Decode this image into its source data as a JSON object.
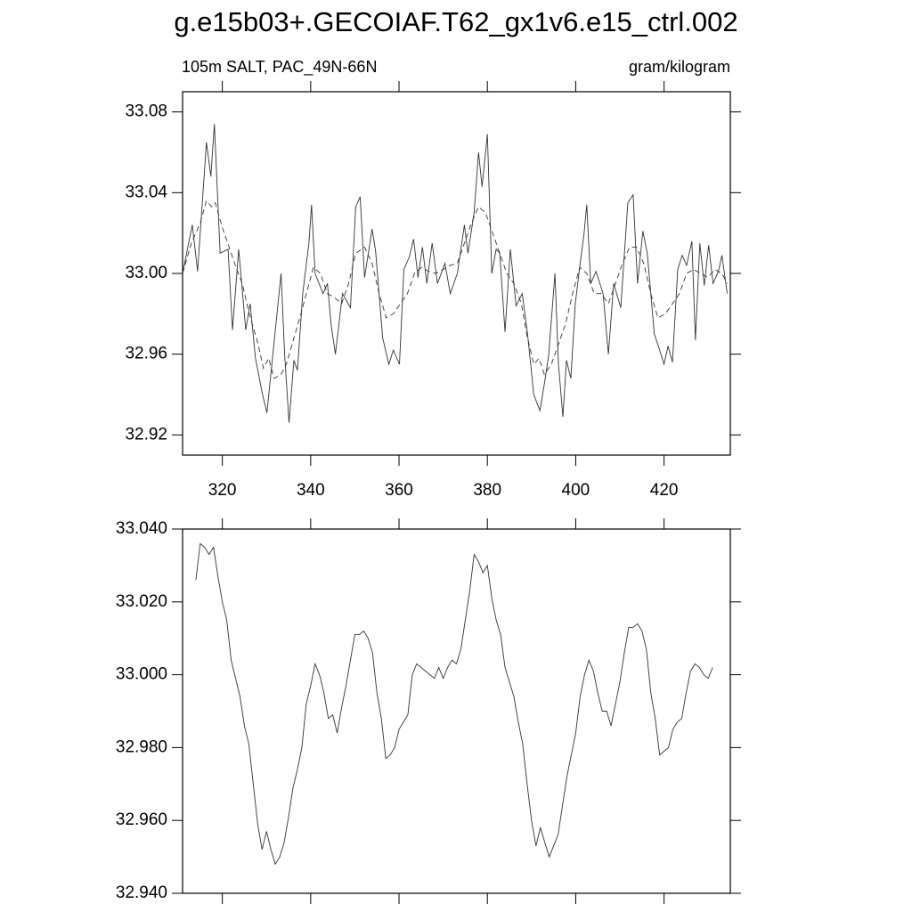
{
  "chart_data": [
    {
      "type": "line",
      "title": "g.e15b03+.GECOIAF.T62_gx1v6.e15_ctrl.002",
      "left_label": "105m SALT, PAC_49N-66N",
      "right_label": "gram/kilogram",
      "xlim": [
        311,
        435
      ],
      "xticks": [
        320,
        340,
        360,
        380,
        400,
        420
      ],
      "ylim": [
        32.91,
        33.09
      ],
      "yticks": [
        32.92,
        32.96,
        {
          "value": 33.0,
          "label": "33.00"
        },
        33.04,
        33.08
      ],
      "series": [
        {
          "color": "#333333",
          "dash": false,
          "x": [
            311,
            313.2,
            314.4,
            316.4,
            317.4,
            318.2,
            319.5,
            321.3,
            322.3,
            323.7,
            325.3,
            326.3,
            327.5,
            329.1,
            330.1,
            333.3,
            334.1,
            335.1,
            336.2,
            337,
            338.2,
            339.6,
            340.2,
            341,
            342.8,
            343.8,
            344.6,
            345.6,
            347.2,
            349,
            350.2,
            351.2,
            352.2,
            353.9,
            354.7,
            356.3,
            357.7,
            358.7,
            360.1,
            361.1,
            362.3,
            363.3,
            364.3,
            365.3,
            366.3,
            367.5,
            368.7,
            370.4,
            371.6,
            373.2,
            374.8,
            375.6,
            377,
            378,
            378.8,
            380,
            381,
            382,
            382.8,
            384,
            385.2,
            386.5,
            387.9,
            389.1,
            390.5,
            391.9,
            393.1,
            393.9,
            395.3,
            396.1,
            397.1,
            397.9,
            398.9,
            399.9,
            400.9,
            401.9,
            402.5,
            403.4,
            404.6,
            406.2,
            407.4,
            408.6,
            410.2,
            411.8,
            413,
            414,
            415.2,
            416.2,
            417.8,
            419,
            420,
            420.9,
            421.9,
            423.1,
            424.1,
            425.1,
            426.3,
            427.1,
            428.1,
            429.1,
            430.1,
            431.1,
            432.3,
            433.1,
            434.3
          ],
          "values": [
            33.0,
            33.024,
            33.001,
            33.065,
            33.048,
            33.074,
            33.01,
            33.012,
            32.972,
            33.012,
            32.972,
            32.985,
            32.958,
            32.94,
            32.931,
            33.0,
            32.96,
            32.926,
            32.957,
            32.952,
            32.99,
            33.015,
            33.034,
            33.0,
            32.99,
            32.995,
            32.975,
            32.96,
            32.99,
            32.983,
            33.033,
            33.038,
            32.998,
            33.022,
            33.011,
            32.968,
            32.955,
            32.962,
            32.955,
            33.002,
            33.008,
            33.017,
            32.998,
            33.013,
            32.995,
            33.015,
            32.995,
            33.005,
            32.99,
            33.0,
            33.024,
            33.01,
            33.03,
            33.06,
            33.043,
            33.069,
            33.0,
            33.012,
            33.01,
            32.971,
            33.012,
            32.984,
            32.99,
            32.97,
            32.94,
            32.932,
            32.948,
            32.96,
            33.0,
            32.955,
            32.929,
            32.957,
            32.948,
            32.985,
            33.003,
            33.02,
            33.034,
            32.995,
            33.001,
            32.99,
            32.96,
            32.995,
            32.983,
            33.035,
            33.039,
            32.995,
            33.021,
            33.01,
            32.97,
            32.962,
            32.955,
            32.964,
            32.956,
            33.002,
            33.009,
            33.004,
            33.016,
            32.967,
            33.015,
            32.994,
            33.014,
            32.995,
            33.001,
            33.009,
            32.99
          ]
        },
        {
          "color": "#333333",
          "dash": true,
          "x": [
            311,
            313,
            315,
            316.4,
            317.6,
            318.4,
            320.1,
            321.7,
            323.1,
            324.5,
            326.1,
            328.1,
            329.3,
            330.5,
            331.7,
            333.3,
            334.5,
            336.2,
            337.8,
            339.4,
            340.6,
            342.2,
            343.8,
            345.4,
            347,
            348.6,
            350.2,
            352.2,
            353.9,
            355.5,
            357.1,
            358.7,
            360.3,
            361.9,
            363.5,
            365.1,
            366.7,
            368.3,
            370,
            371.6,
            373.2,
            374.8,
            376.4,
            378,
            379.6,
            381.2,
            382.8,
            384.4,
            386,
            387.7,
            388.9,
            390.5,
            391.7,
            392.9,
            394.5,
            396.1,
            397.7,
            399.3,
            400.9,
            402.5,
            404.2,
            405.8,
            407.4,
            409,
            410.6,
            412.2,
            413.8,
            415.4,
            417,
            418.6,
            420.3,
            421.9,
            423.5,
            425.1,
            426.7,
            428.3,
            429.9,
            431.5,
            433.1,
            434.3
          ],
          "values": [
            33.0,
            33.015,
            33.025,
            33.036,
            33.033,
            33.035,
            33.022,
            33.012,
            33.003,
            32.995,
            32.98,
            32.965,
            32.953,
            32.958,
            32.948,
            32.95,
            32.955,
            32.968,
            32.98,
            32.993,
            33.003,
            33.0,
            32.99,
            32.988,
            32.985,
            32.995,
            33.01,
            33.013,
            33.005,
            32.99,
            32.978,
            32.98,
            32.985,
            32.99,
            33.0,
            33.003,
            33.001,
            33.0,
            33.002,
            33.004,
            33.005,
            33.015,
            33.025,
            33.033,
            33.03,
            33.02,
            33.01,
            33.0,
            32.995,
            32.985,
            32.97,
            32.955,
            32.958,
            32.95,
            32.955,
            32.965,
            32.975,
            32.99,
            33.003,
            33.0,
            32.99,
            32.99,
            32.985,
            32.995,
            33.005,
            33.013,
            33.013,
            33.005,
            32.99,
            32.978,
            32.98,
            32.985,
            32.99,
            33.0,
            33.002,
            33.0,
            32.998,
            33.002,
            33.0,
            32.995
          ]
        }
      ]
    },
    {
      "type": "line",
      "xlim": [
        311,
        435
      ],
      "xticks": [
        320,
        340,
        360,
        380,
        400,
        420
      ],
      "ylim": [
        32.94,
        33.04
      ],
      "yticks": [
        {
          "value": 32.94,
          "label": "32.940"
        },
        {
          "value": 32.96,
          "label": "32.960"
        },
        {
          "value": 32.98,
          "label": "32.980"
        },
        {
          "value": 33.0,
          "label": "33.000"
        },
        {
          "value": 33.02,
          "label": "33.020"
        },
        {
          "value": 33.04,
          "label": "33.040"
        }
      ],
      "series": [
        {
          "color": "#333333",
          "dash": false,
          "x": [
            314,
            315,
            316,
            317,
            318,
            319,
            320,
            321,
            322,
            323,
            324,
            325,
            326,
            327,
            328,
            329,
            330,
            331,
            332,
            333,
            334,
            335,
            336,
            337,
            338,
            339,
            340,
            341,
            342,
            343,
            344,
            345,
            346,
            347,
            348,
            349,
            350,
            351,
            352,
            353,
            354,
            355,
            356,
            357,
            358,
            359,
            360,
            361,
            362,
            363,
            364,
            365,
            366,
            367,
            368,
            369,
            370,
            371,
            372,
            373,
            374,
            375,
            376,
            377,
            378,
            379,
            380,
            381,
            382,
            383,
            384,
            385,
            386,
            387,
            388,
            389,
            390,
            391,
            392,
            393,
            394,
            395,
            396,
            397,
            398,
            399,
            400,
            401,
            402,
            403,
            404,
            405,
            406,
            407,
            408,
            409,
            410,
            411,
            412,
            413,
            414,
            415,
            416,
            417,
            418,
            419,
            420,
            421,
            422,
            423,
            424,
            425,
            426,
            427,
            428,
            429,
            430,
            431
          ],
          "values": [
            33.026,
            33.036,
            33.035,
            33.033,
            33.035,
            33.027,
            33.02,
            33.015,
            33.004,
            32.999,
            32.994,
            32.986,
            32.981,
            32.97,
            32.959,
            32.952,
            32.957,
            32.952,
            32.948,
            32.95,
            32.954,
            32.961,
            32.969,
            32.974,
            32.98,
            32.992,
            32.997,
            33.003,
            33.0,
            32.995,
            32.988,
            32.989,
            32.984,
            32.991,
            32.997,
            33.004,
            33.011,
            33.011,
            33.012,
            33.01,
            33.006,
            32.995,
            32.988,
            32.977,
            32.978,
            32.98,
            32.985,
            32.987,
            32.989,
            33.0,
            33.003,
            33.002,
            33.001,
            33.0,
            32.999,
            33.002,
            32.999,
            33.002,
            33.004,
            33.003,
            33.007,
            33.015,
            33.023,
            33.033,
            33.031,
            33.028,
            33.03,
            33.021,
            33.015,
            33.011,
            33.002,
            32.998,
            32.994,
            32.987,
            32.981,
            32.97,
            32.96,
            32.953,
            32.958,
            32.954,
            32.95,
            32.953,
            32.956,
            32.964,
            32.972,
            32.978,
            32.984,
            32.994,
            33.0,
            33.004,
            33.001,
            32.995,
            32.99,
            32.99,
            32.986,
            32.992,
            32.998,
            33.006,
            33.013,
            33.013,
            33.014,
            33.012,
            33.007,
            32.995,
            32.988,
            32.978,
            32.979,
            32.98,
            32.985,
            32.987,
            32.988,
            32.995,
            33.001,
            33.003,
            33.002,
            33.0,
            32.999,
            33.002
          ]
        }
      ]
    }
  ]
}
